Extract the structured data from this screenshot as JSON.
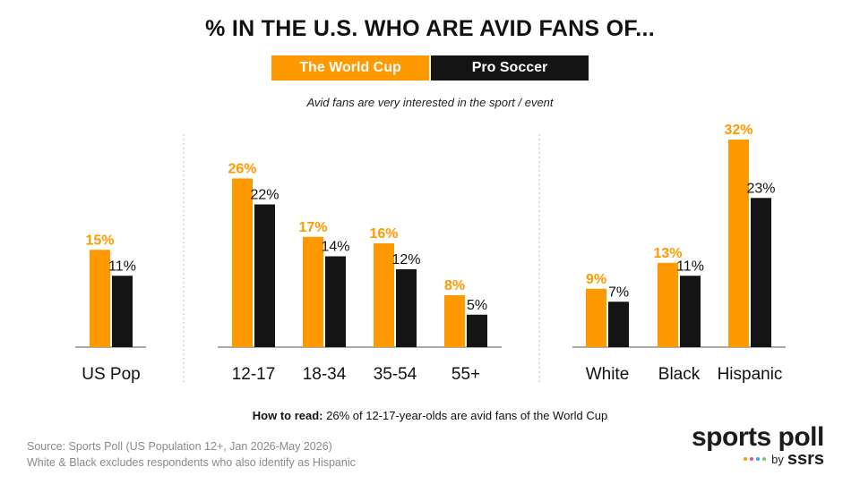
{
  "title": "% IN THE U.S. WHO ARE AVID FANS OF...",
  "subtitle": "Avid fans are very interested in the sport / event",
  "how_to_read": {
    "label": "How to read:",
    "text": "26% of 12-17-year-olds are avid fans of the World Cup"
  },
  "source": {
    "line1": "Source: Sports Poll (US Population 12+, Jan 2026-May 2026)",
    "line2": "White & Black excludes respondents who also identify as Hispanic"
  },
  "logo": {
    "main": "sports poll",
    "by": "by",
    "brand": "ssrs",
    "dot_colors": [
      "#ff9900",
      "#e84a9a",
      "#3aa6e0",
      "#7ac943"
    ]
  },
  "colors": {
    "world_cup": "#ff9900",
    "pro_soccer": "#141414",
    "axis": "#555555",
    "divider": "#bdbdbd"
  },
  "chart_data": {
    "type": "bar",
    "categories": [
      "US Pop",
      "12-17",
      "18-34",
      "35-54",
      "55+",
      "White",
      "Black",
      "Hispanic"
    ],
    "groups": [
      [
        "US Pop"
      ],
      [
        "12-17",
        "18-34",
        "35-54",
        "55+"
      ],
      [
        "White",
        "Black",
        "Hispanic"
      ]
    ],
    "series": [
      {
        "name": "The World Cup",
        "values": [
          15,
          26,
          17,
          16,
          8,
          9,
          13,
          32
        ],
        "labels": [
          "15%",
          "26%",
          "17%",
          "16%",
          "8%",
          "9%",
          "13%",
          "32%"
        ],
        "color": "#ff9900"
      },
      {
        "name": "Pro Soccer",
        "values": [
          11,
          22,
          14,
          12,
          5,
          7,
          11,
          23
        ],
        "labels": [
          "11%",
          "22%",
          "14%",
          "12%",
          "5%",
          "7%",
          "11%",
          "23%"
        ],
        "color": "#141414"
      }
    ],
    "ylim": [
      0,
      32
    ],
    "legend": "top-center",
    "grid": false
  }
}
